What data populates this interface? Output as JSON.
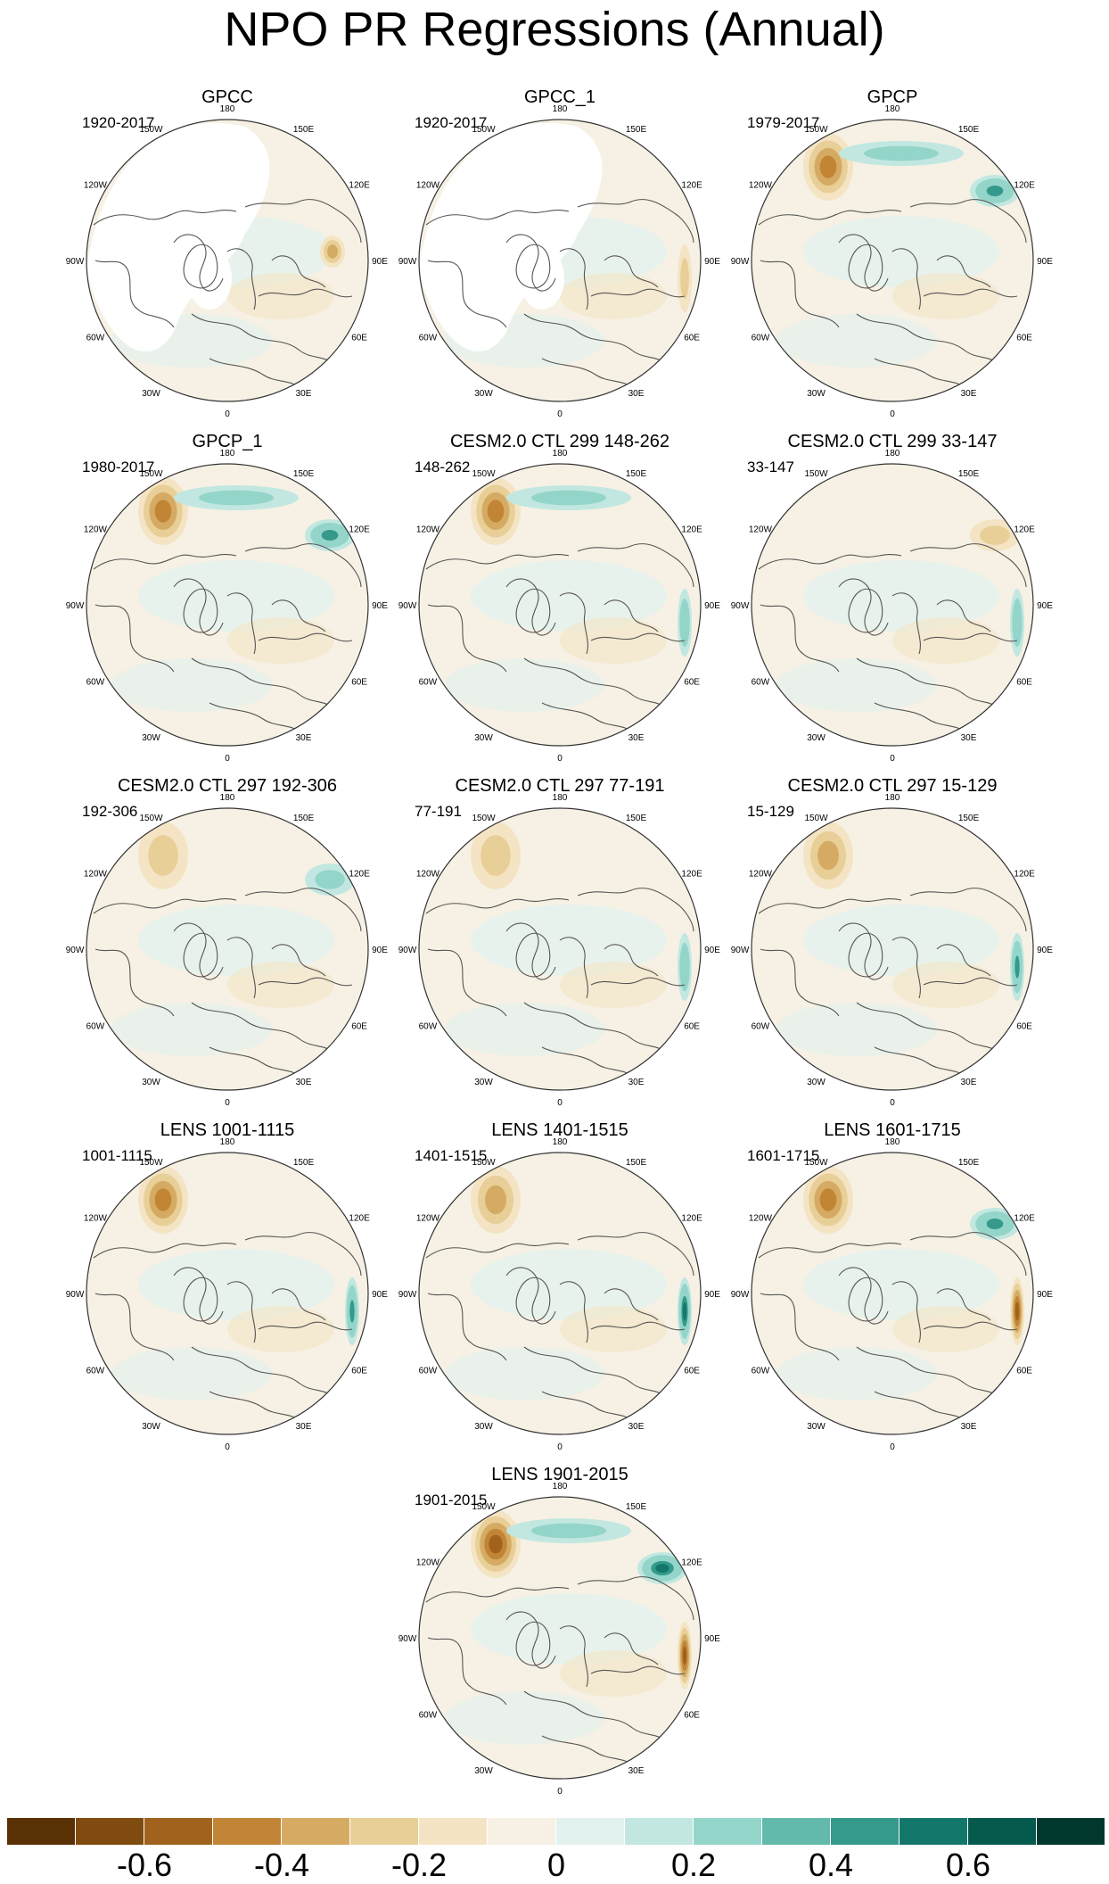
{
  "title": "NPO PR Regressions (Annual)",
  "panels": [
    {
      "id": "p0",
      "title": "GPCC",
      "range": "1920-2017",
      "blank_arctic": true,
      "blobs": [
        {
          "pos": "ne-mid",
          "v": -0.35
        }
      ]
    },
    {
      "id": "p1",
      "title": "GPCC_1",
      "range": "1920-2017",
      "blank_arctic": true,
      "blobs": [
        {
          "pos": "e",
          "v": -0.2
        }
      ]
    },
    {
      "id": "p2",
      "title": "GPCP",
      "range": "1979-2017",
      "blank_arctic": false,
      "blobs": [
        {
          "pos": "nw",
          "v": -0.4
        },
        {
          "pos": "ne",
          "v": 0.45
        },
        {
          "pos": "n",
          "v": 0.2
        }
      ]
    },
    {
      "id": "p3",
      "title": "GPCP_1",
      "range": "1980-2017",
      "blank_arctic": false,
      "blobs": [
        {
          "pos": "nw",
          "v": -0.45
        },
        {
          "pos": "ne",
          "v": 0.45
        },
        {
          "pos": "n",
          "v": 0.25
        }
      ]
    },
    {
      "id": "p4",
      "title": "CESM2.0 CTL 299 148-262",
      "range": "148-262",
      "blank_arctic": false,
      "blobs": [
        {
          "pos": "nw",
          "v": -0.4
        },
        {
          "pos": "n",
          "v": 0.2
        },
        {
          "pos": "e",
          "v": 0.3
        }
      ]
    },
    {
      "id": "p5",
      "title": "CESM2.0 CTL 299 33-147",
      "range": "33-147",
      "blank_arctic": false,
      "blobs": [
        {
          "pos": "ne",
          "v": -0.2
        },
        {
          "pos": "e",
          "v": 0.35
        }
      ]
    },
    {
      "id": "p6",
      "title": "CESM2.0 CTL 297 192-306",
      "range": "192-306",
      "blank_arctic": false,
      "blobs": [
        {
          "pos": "nw",
          "v": -0.25
        },
        {
          "pos": "ne",
          "v": 0.2
        }
      ]
    },
    {
      "id": "p7",
      "title": "CESM2.0 CTL 297 77-191",
      "range": "77-191",
      "blank_arctic": false,
      "blobs": [
        {
          "pos": "nw",
          "v": -0.2
        },
        {
          "pos": "e",
          "v": 0.35
        }
      ]
    },
    {
      "id": "p8",
      "title": "CESM2.0 CTL 297 15-129",
      "range": "15-129",
      "blank_arctic": false,
      "blobs": [
        {
          "pos": "nw",
          "v": -0.3
        },
        {
          "pos": "e",
          "v": 0.4
        }
      ]
    },
    {
      "id": "p9",
      "title": "LENS 1001-1115",
      "range": "1001-1115",
      "blank_arctic": false,
      "blobs": [
        {
          "pos": "nw",
          "v": -0.4
        },
        {
          "pos": "e",
          "v": 0.45
        }
      ]
    },
    {
      "id": "p10",
      "title": "LENS 1401-1515",
      "range": "1401-1515",
      "blank_arctic": false,
      "blobs": [
        {
          "pos": "nw",
          "v": -0.35
        },
        {
          "pos": "e",
          "v": 0.5
        }
      ]
    },
    {
      "id": "p11",
      "title": "LENS 1601-1715",
      "range": "1601-1715",
      "blank_arctic": false,
      "blobs": [
        {
          "pos": "nw",
          "v": -0.4
        },
        {
          "pos": "ne",
          "v": 0.45
        },
        {
          "pos": "e",
          "v": -0.5
        }
      ]
    },
    {
      "id": "p12",
      "title": "LENS 1901-2015",
      "range": "1901-2015",
      "blank_arctic": false,
      "blobs": [
        {
          "pos": "nw",
          "v": -0.5
        },
        {
          "pos": "ne",
          "v": 0.5
        },
        {
          "pos": "n",
          "v": 0.25
        },
        {
          "pos": "e",
          "v": -0.55
        }
      ]
    }
  ],
  "lon_labels": [
    "180",
    "150E",
    "120E",
    "90E",
    "60E",
    "30E",
    "0",
    "30W",
    "60W",
    "90W",
    "120W",
    "150W"
  ],
  "colorbar": {
    "colors": [
      "#5a3005",
      "#7f4b0f",
      "#a0621c",
      "#c28535",
      "#d5ab64",
      "#e8cf97",
      "#f4e4c4",
      "#f6f1e4",
      "#e2f2ef",
      "#c2e7e1",
      "#94d5ca",
      "#63b9ab",
      "#35998c",
      "#13776b",
      "#055a4d",
      "#00382e"
    ],
    "ticks": [
      {
        "v": -0.6,
        "label": "-0.6"
      },
      {
        "v": -0.4,
        "label": "-0.4"
      },
      {
        "v": -0.2,
        "label": "-0.2"
      },
      {
        "v": 0,
        "label": "0"
      },
      {
        "v": 0.2,
        "label": "0.2"
      },
      {
        "v": 0.4,
        "label": "0.4"
      },
      {
        "v": 0.6,
        "label": "0.6"
      }
    ]
  }
}
